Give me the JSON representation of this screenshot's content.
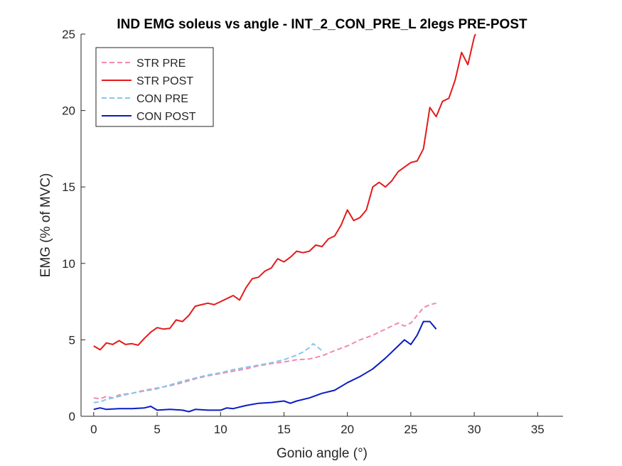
{
  "chart_data": {
    "type": "line",
    "title": "IND EMG soleus vs angle - INT_2_CON_PRE_L 2legs PRE-POST",
    "xlabel": "Gonio angle (°)",
    "ylabel": "EMG (% of MVC)",
    "xlim": [
      -1,
      37
    ],
    "ylim": [
      0,
      25
    ],
    "xticks": [
      0,
      5,
      10,
      15,
      20,
      25,
      30,
      35
    ],
    "yticks": [
      0,
      5,
      10,
      15,
      20,
      25
    ],
    "grid": false,
    "legend_position": "top-left",
    "series": [
      {
        "name": "STR PRE",
        "color": "#f28ab0",
        "style": "dashed",
        "points": [
          [
            0,
            1.2
          ],
          [
            0.5,
            1.15
          ],
          [
            1,
            1.3
          ],
          [
            1.5,
            1.2
          ],
          [
            2,
            1.4
          ],
          [
            3,
            1.5
          ],
          [
            4,
            1.7
          ],
          [
            5,
            1.85
          ],
          [
            6,
            2.0
          ],
          [
            7,
            2.2
          ],
          [
            8,
            2.45
          ],
          [
            9,
            2.65
          ],
          [
            10,
            2.8
          ],
          [
            11,
            2.95
          ],
          [
            12,
            3.1
          ],
          [
            13,
            3.3
          ],
          [
            14,
            3.45
          ],
          [
            15,
            3.55
          ],
          [
            16,
            3.7
          ],
          [
            17,
            3.75
          ],
          [
            18,
            3.95
          ],
          [
            19,
            4.3
          ],
          [
            20,
            4.6
          ],
          [
            21,
            5.0
          ],
          [
            22,
            5.3
          ],
          [
            23,
            5.7
          ],
          [
            24,
            6.1
          ],
          [
            24.5,
            5.9
          ],
          [
            25,
            6.1
          ],
          [
            25.5,
            6.6
          ],
          [
            26,
            7.1
          ],
          [
            26.5,
            7.3
          ],
          [
            27,
            7.4
          ]
        ]
      },
      {
        "name": "STR POST",
        "color": "#e31a1c",
        "style": "solid",
        "points": [
          [
            0,
            4.6
          ],
          [
            0.5,
            4.35
          ],
          [
            1,
            4.8
          ],
          [
            1.5,
            4.7
          ],
          [
            2,
            4.95
          ],
          [
            2.5,
            4.7
          ],
          [
            3,
            4.75
          ],
          [
            3.5,
            4.65
          ],
          [
            4,
            5.1
          ],
          [
            4.5,
            5.5
          ],
          [
            5,
            5.8
          ],
          [
            5.5,
            5.7
          ],
          [
            6,
            5.75
          ],
          [
            6.5,
            6.3
          ],
          [
            7,
            6.2
          ],
          [
            7.5,
            6.6
          ],
          [
            8,
            7.2
          ],
          [
            8.5,
            7.3
          ],
          [
            9,
            7.4
          ],
          [
            9.5,
            7.3
          ],
          [
            10,
            7.5
          ],
          [
            10.5,
            7.7
          ],
          [
            11,
            7.9
          ],
          [
            11.5,
            7.6
          ],
          [
            12,
            8.4
          ],
          [
            12.5,
            9.0
          ],
          [
            13,
            9.1
          ],
          [
            13.5,
            9.5
          ],
          [
            14,
            9.7
          ],
          [
            14.5,
            10.3
          ],
          [
            15,
            10.1
          ],
          [
            15.5,
            10.4
          ],
          [
            16,
            10.8
          ],
          [
            16.5,
            10.7
          ],
          [
            17,
            10.8
          ],
          [
            17.5,
            11.2
          ],
          [
            18,
            11.1
          ],
          [
            18.5,
            11.6
          ],
          [
            19,
            11.8
          ],
          [
            19.5,
            12.5
          ],
          [
            20,
            13.5
          ],
          [
            20.5,
            12.8
          ],
          [
            21,
            13.0
          ],
          [
            21.5,
            13.5
          ],
          [
            22,
            15.0
          ],
          [
            22.5,
            15.3
          ],
          [
            23,
            15.0
          ],
          [
            23.5,
            15.4
          ],
          [
            24,
            16.0
          ],
          [
            24.5,
            16.3
          ],
          [
            25,
            16.6
          ],
          [
            25.5,
            16.7
          ],
          [
            26,
            17.5
          ],
          [
            26.5,
            20.2
          ],
          [
            27,
            19.6
          ],
          [
            27.5,
            20.6
          ],
          [
            28,
            20.8
          ],
          [
            28.5,
            22.0
          ],
          [
            29,
            23.8
          ],
          [
            29.5,
            23.0
          ],
          [
            30,
            24.8
          ],
          [
            30.1,
            25
          ]
        ]
      },
      {
        "name": "CON PRE",
        "color": "#87c6ea",
        "style": "dashed",
        "points": [
          [
            0,
            0.9
          ],
          [
            0.5,
            0.95
          ],
          [
            1,
            1.1
          ],
          [
            2,
            1.3
          ],
          [
            3,
            1.5
          ],
          [
            4,
            1.65
          ],
          [
            5,
            1.8
          ],
          [
            6,
            2.05
          ],
          [
            7,
            2.3
          ],
          [
            8,
            2.5
          ],
          [
            9,
            2.7
          ],
          [
            10,
            2.85
          ],
          [
            11,
            3.05
          ],
          [
            12,
            3.2
          ],
          [
            13,
            3.35
          ],
          [
            14,
            3.5
          ],
          [
            15,
            3.7
          ],
          [
            16,
            4.0
          ],
          [
            16.5,
            4.2
          ],
          [
            17,
            4.5
          ],
          [
            17.3,
            4.75
          ],
          [
            17.6,
            4.55
          ],
          [
            18,
            4.3
          ]
        ]
      },
      {
        "name": "CON POST",
        "color": "#0b1cc4",
        "style": "solid",
        "points": [
          [
            0,
            0.45
          ],
          [
            0.5,
            0.55
          ],
          [
            1,
            0.45
          ],
          [
            2,
            0.5
          ],
          [
            3,
            0.5
          ],
          [
            4,
            0.55
          ],
          [
            4.5,
            0.65
          ],
          [
            5,
            0.4
          ],
          [
            6,
            0.45
          ],
          [
            7,
            0.4
          ],
          [
            7.5,
            0.3
          ],
          [
            8,
            0.45
          ],
          [
            9,
            0.4
          ],
          [
            10,
            0.4
          ],
          [
            10.5,
            0.55
          ],
          [
            11,
            0.5
          ],
          [
            12,
            0.7
          ],
          [
            13,
            0.85
          ],
          [
            14,
            0.9
          ],
          [
            15,
            1.0
          ],
          [
            15.5,
            0.85
          ],
          [
            16,
            1.0
          ],
          [
            17,
            1.2
          ],
          [
            18,
            1.5
          ],
          [
            19,
            1.7
          ],
          [
            20,
            2.2
          ],
          [
            21,
            2.6
          ],
          [
            22,
            3.1
          ],
          [
            23,
            3.8
          ],
          [
            24,
            4.6
          ],
          [
            24.5,
            5.0
          ],
          [
            25,
            4.7
          ],
          [
            25.5,
            5.3
          ],
          [
            26,
            6.2
          ],
          [
            26.5,
            6.2
          ],
          [
            27,
            5.7
          ]
        ]
      }
    ]
  }
}
